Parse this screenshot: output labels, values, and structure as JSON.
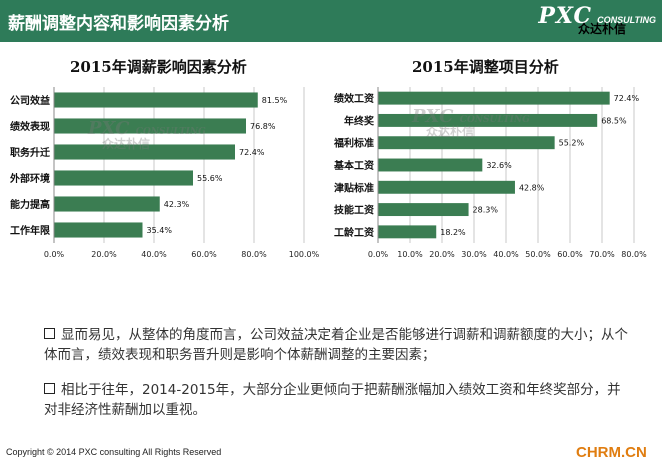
{
  "header": {
    "title": "薪酬调整内容和影响因素分析",
    "logo_main": "PXC",
    "logo_sub": "CONSULTING",
    "logo_cn": "众达朴信"
  },
  "watermark": {
    "main": "PXC",
    "sub": "CONSULTING",
    "cn": "众达朴信"
  },
  "chart_data": [
    {
      "type": "bar",
      "orientation": "horizontal",
      "title": "2015年调薪影响因素分析",
      "categories": [
        "公司效益",
        "绩效表现",
        "职务升迁",
        "外部环境",
        "能力提高",
        "工作年限"
      ],
      "values": [
        81.5,
        76.8,
        72.4,
        55.6,
        42.3,
        35.4
      ],
      "value_labels": [
        "81.5%",
        "76.8%",
        "72.4%",
        "55.6%",
        "42.3%",
        "35.4%"
      ],
      "xlim": [
        0,
        100
      ],
      "ticks": [
        0,
        20,
        40,
        60,
        80,
        100
      ],
      "tick_labels": [
        "0.0%",
        "20.0%",
        "40.0%",
        "60.0%",
        "80.0%",
        "100.0%"
      ],
      "grid": true,
      "bar_color": "#3b7d52"
    },
    {
      "type": "bar",
      "orientation": "horizontal",
      "title": "2015年调整项目分析",
      "categories": [
        "绩效工资",
        "年终奖",
        "福利标准",
        "基本工资",
        "津贴标准",
        "技能工资",
        "工龄工资"
      ],
      "values": [
        72.4,
        68.5,
        55.2,
        32.6,
        42.8,
        28.3,
        18.2
      ],
      "value_labels": [
        "72.4%",
        "68.5%",
        "55.2%",
        "32.6%",
        "42.8%",
        "28.3%",
        "18.2%"
      ],
      "xlim": [
        0,
        80
      ],
      "ticks": [
        0,
        10,
        20,
        30,
        40,
        50,
        60,
        70,
        80
      ],
      "tick_labels": [
        "0.0%",
        "10.0%",
        "20.0%",
        "30.0%",
        "40.0%",
        "50.0%",
        "60.0%",
        "70.0%",
        "80.0%"
      ],
      "grid": true,
      "bar_color": "#3b7d52"
    }
  ],
  "text": {
    "p1": "显而易见，从整体的角度而言，公司效益决定着企业是否能够进行调薪和调薪额度的大小；从个体而言，绩效表现和职务晋升则是影响个体薪酬调整的主要因素；",
    "p2": "相比于往年，2014-2015年，大部分企业更倾向于把薪酬涨幅加入绩效工资和年终奖部分，并对非经济性薪酬加以重视。"
  },
  "footer": {
    "copyright": "Copyright © 2014 PXC consulting All Rights Reserved",
    "site": "CHRM.CN"
  }
}
